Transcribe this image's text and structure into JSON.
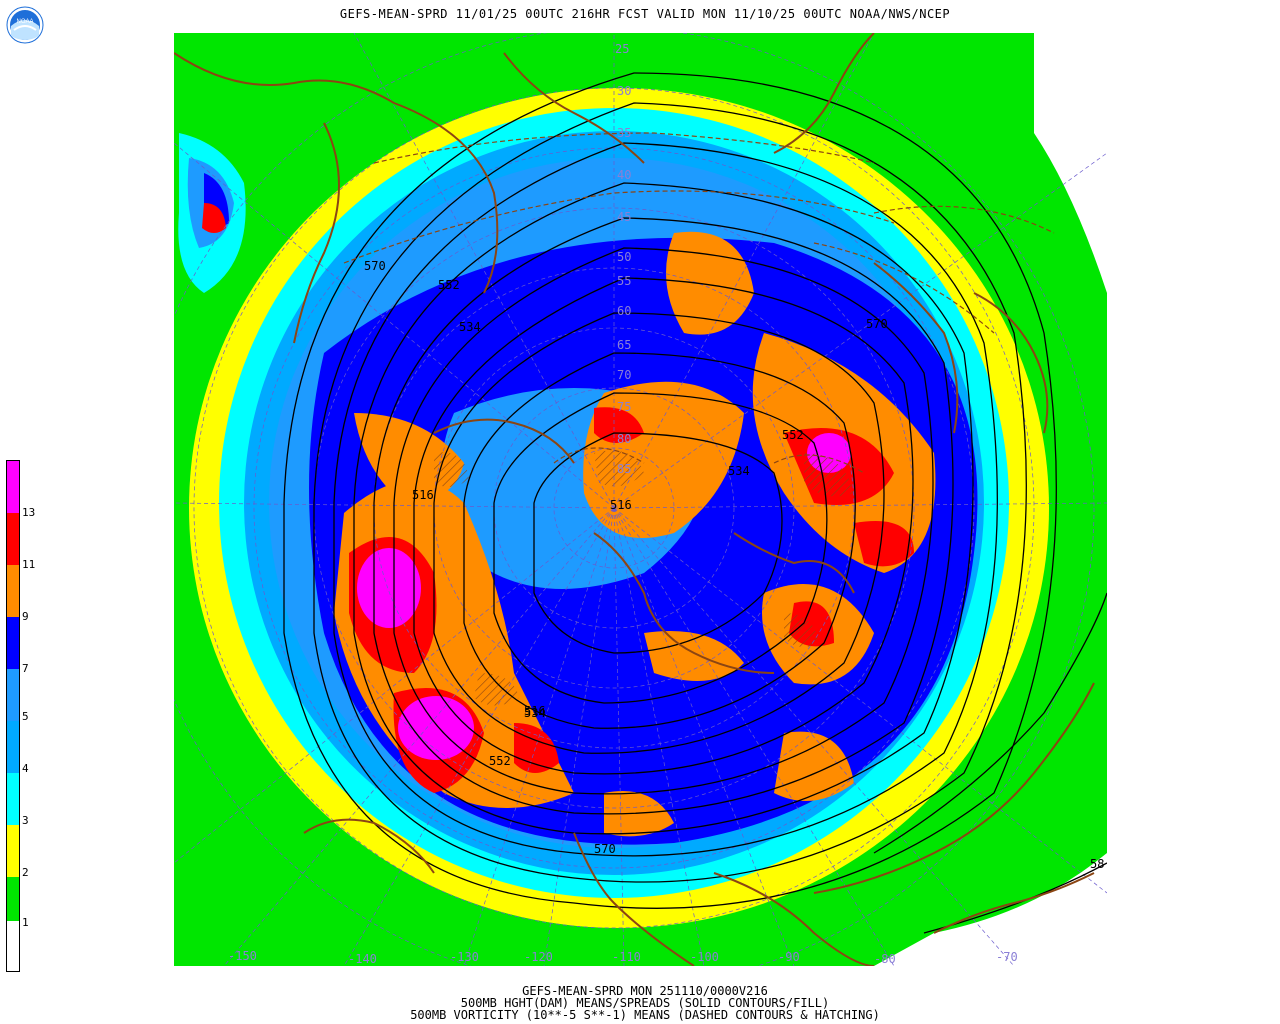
{
  "header": {
    "title": "GEFS-MEAN-SPRD 11/01/25 00UTC 216HR FCST VALID MON 11/10/25 00UTC NOAA/NWS/NCEP"
  },
  "logo": {
    "text": "NOAA",
    "icon": "noaa-logo-icon"
  },
  "footer": {
    "line1": "GEFS-MEAN-SPRD MON 251110/0000V216",
    "line2": "500MB HGHT(DAM) MEANS/SPREADS (SOLID CONTOURS/FILL)",
    "line3": "500MB VORTICITY (10**-5 S**-1) MEANS (DASHED CONTOURS & HATCHING)"
  },
  "colorbar": {
    "labels": [
      "13",
      "11",
      "9",
      "7",
      "5",
      "4",
      "3",
      "2",
      "1"
    ],
    "colors": [
      "#ffffff",
      "#00e600",
      "#ffff00",
      "#00ffff",
      "#1e9bff",
      "#0000ff",
      "#ff8c00",
      "#ff0000",
      "#ff00ff"
    ]
  },
  "map": {
    "contour_labels": [
      "570",
      "552",
      "534",
      "516",
      "516",
      "534",
      "552",
      "516",
      "534",
      "552",
      "570",
      "570",
      "58"
    ],
    "latitude_labels": [
      "25",
      "30",
      "35",
      "40",
      "45",
      "50",
      "55",
      "60",
      "65",
      "70",
      "75",
      "80",
      "85"
    ],
    "longitude_labels": [
      "-150",
      "-140",
      "-130",
      "-120",
      "-110",
      "-100",
      "-90",
      "-80",
      "-70"
    ],
    "colors": {
      "continent": "#8b4513",
      "grid": "#6a5acd",
      "contour": "#000000"
    }
  }
}
